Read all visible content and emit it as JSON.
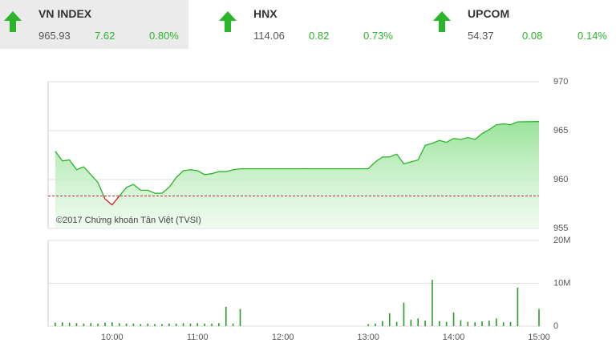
{
  "header": {
    "indices": [
      {
        "name": "VN INDEX",
        "value": "965.93",
        "change": "7.62",
        "percent": "0.80%"
      },
      {
        "name": "HNX",
        "value": "114.06",
        "change": "0.82",
        "percent": "0.73%"
      },
      {
        "name": "UPCOM",
        "value": "54.37",
        "change": "0.08",
        "percent": "0.14%"
      }
    ]
  },
  "chart_data": [
    {
      "type": "line",
      "annotation": "©2017 Chứng khoán Tân Việt (TVSI)",
      "x": [
        "09:20",
        "09:25",
        "09:30",
        "09:35",
        "09:40",
        "09:45",
        "09:50",
        "09:55",
        "10:00",
        "10:05",
        "10:10",
        "10:15",
        "10:20",
        "10:25",
        "10:30",
        "10:35",
        "10:40",
        "10:45",
        "10:50",
        "10:55",
        "11:00",
        "11:05",
        "11:10",
        "11:15",
        "11:20",
        "11:25",
        "11:30",
        "13:00",
        "13:05",
        "13:10",
        "13:15",
        "13:20",
        "13:25",
        "13:30",
        "13:35",
        "13:40",
        "13:45",
        "13:50",
        "13:55",
        "14:00",
        "14:05",
        "14:10",
        "14:15",
        "14:20",
        "14:25",
        "14:30",
        "14:35",
        "14:40",
        "14:45",
        "15:00"
      ],
      "values": [
        962.9,
        961.9,
        962.0,
        961.0,
        961.3,
        960.5,
        959.7,
        958.0,
        957.4,
        958.3,
        959.2,
        959.5,
        958.9,
        958.9,
        958.6,
        958.6,
        959.2,
        960.2,
        960.9,
        961.0,
        960.9,
        960.5,
        960.6,
        960.8,
        960.8,
        961.0,
        961.1,
        961.1,
        961.8,
        962.3,
        962.3,
        962.6,
        961.6,
        961.8,
        962.0,
        963.5,
        963.7,
        964.0,
        963.8,
        964.2,
        964.1,
        964.3,
        964.1,
        964.7,
        965.1,
        965.6,
        965.7,
        965.6,
        965.9,
        965.93
      ],
      "reference_line": 958.31,
      "color_up": "#2ab52a",
      "color_down": "#d42020",
      "xlim": [
        "09:15",
        "15:00"
      ],
      "ylim": [
        955,
        970
      ],
      "yticks": [
        955,
        960,
        965,
        970
      ],
      "grid": true
    },
    {
      "type": "bar",
      "color": "#2a9a2a",
      "x": [
        "09:20",
        "09:25",
        "09:30",
        "09:35",
        "09:40",
        "09:45",
        "09:50",
        "09:55",
        "10:00",
        "10:05",
        "10:10",
        "10:15",
        "10:20",
        "10:25",
        "10:30",
        "10:35",
        "10:40",
        "10:45",
        "10:50",
        "10:55",
        "11:00",
        "11:05",
        "11:10",
        "11:15",
        "11:20",
        "11:25",
        "11:30",
        "13:00",
        "13:05",
        "13:10",
        "13:15",
        "13:20",
        "13:25",
        "13:30",
        "13:35",
        "13:40",
        "13:45",
        "13:50",
        "13:55",
        "14:00",
        "14:05",
        "14:10",
        "14:15",
        "14:20",
        "14:25",
        "14:30",
        "14:35",
        "14:40",
        "14:45",
        "15:00"
      ],
      "values": [
        0.8,
        0.9,
        0.8,
        0.7,
        0.6,
        0.7,
        0.6,
        0.8,
        0.9,
        0.7,
        0.6,
        0.6,
        0.5,
        0.6,
        0.5,
        0.5,
        0.6,
        0.6,
        0.7,
        0.6,
        0.7,
        0.6,
        0.6,
        0.7,
        4.5,
        0.6,
        4.0,
        0.5,
        0.6,
        1.2,
        3.0,
        1.0,
        5.5,
        1.5,
        1.8,
        1.3,
        10.8,
        1.2,
        1.0,
        3.2,
        1.4,
        1.0,
        0.9,
        1.1,
        1.3,
        1.8,
        0.9,
        1.0,
        9.0,
        4.0
      ],
      "xlim": [
        "09:15",
        "15:00"
      ],
      "xticks": [
        "10:00",
        "11:00",
        "12:00",
        "13:00",
        "14:00",
        "15:00"
      ],
      "ylim": [
        0,
        20
      ],
      "yticks": [
        0,
        {
          "value": 10,
          "label": "10M"
        },
        {
          "value": 20,
          "label": "20M"
        }
      ],
      "grid": true
    }
  ]
}
